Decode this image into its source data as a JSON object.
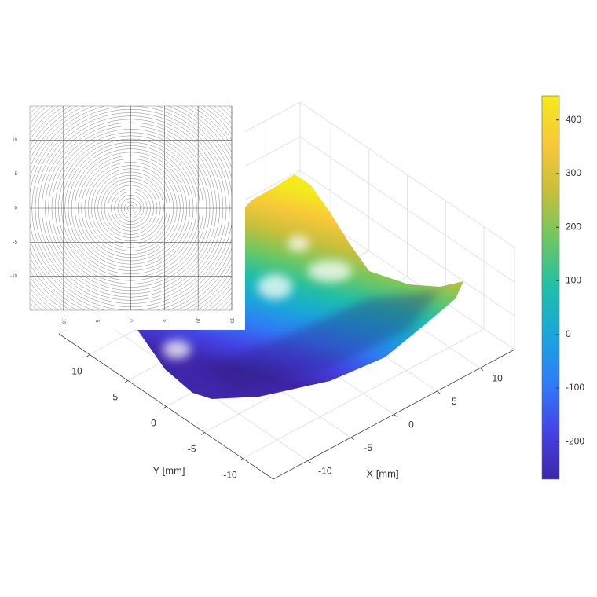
{
  "chart_data": [
    {
      "type": "surface",
      "xlabel": "X [mm]",
      "ylabel": "Y [mm]",
      "xlim": [
        -14,
        14
      ],
      "ylim": [
        -14,
        14
      ],
      "xticks": [
        -10,
        -5,
        0,
        5,
        10
      ],
      "yticks": [
        -10,
        -5,
        0,
        5,
        10
      ],
      "grid": true,
      "colorbar": {
        "clim": [
          -270,
          445
        ],
        "ticks": [
          -200,
          -100,
          0,
          100,
          200,
          300,
          400
        ],
        "colormap": [
          "#3e26a8",
          "#4443e6",
          "#2f7cf6",
          "#1aa6da",
          "#20bfa8",
          "#6cc763",
          "#c6bf3b",
          "#f7c83a",
          "#f4ea1c"
        ]
      }
    },
    {
      "type": "contour",
      "xlim": [
        -15,
        15
      ],
      "ylim": [
        -15,
        15
      ],
      "xticks": [
        -10,
        -5,
        0,
        5,
        10,
        15
      ],
      "yticks": [
        -10,
        -5,
        0,
        5,
        10
      ],
      "grid": true
    }
  ]
}
